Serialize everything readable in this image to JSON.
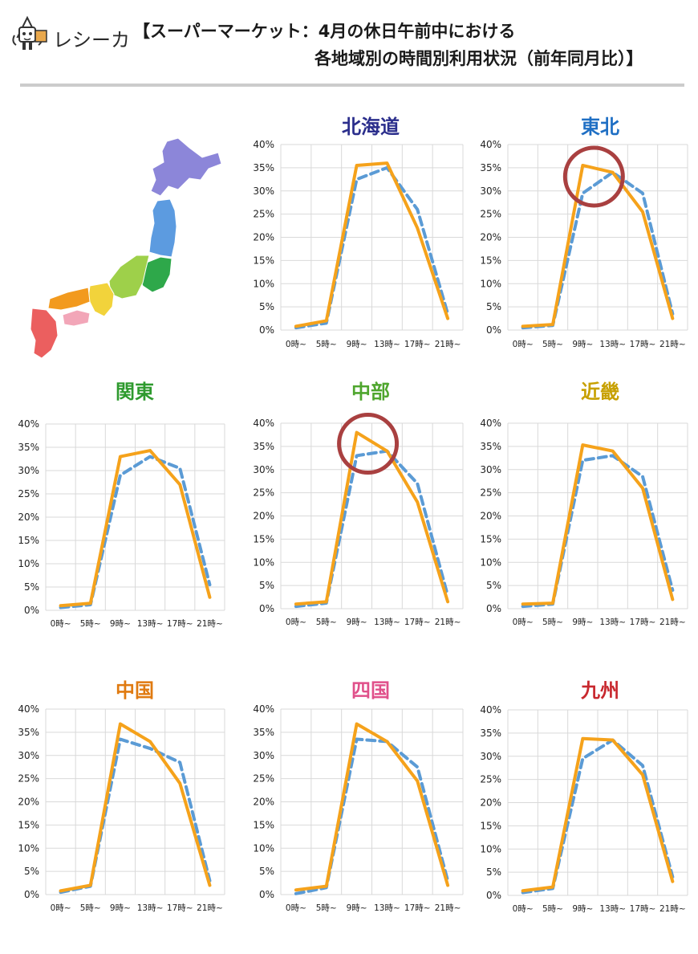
{
  "brand": {
    "logo_text": "レシーカ"
  },
  "header": {
    "title_line1": "【スーパーマーケット：4月の休日午前中における",
    "title_line2": "各地域別の時間別利用状況（前年同月比）】"
  },
  "colors": {
    "current_line": "#F5A21B",
    "previous_line": "#5B9BD5",
    "highlight_circle": "#A94040",
    "divider": "#cccccc",
    "map": {
      "hokkaido": "#8C86D9",
      "tohoku": "#5C9BE0",
      "kanto": "#2EA84A",
      "chubu": "#9ED04A",
      "kinki": "#F2D33B",
      "chugoku": "#F29A1E",
      "shikoku": "#F2A6B8",
      "kyushu": "#EB5F5F"
    }
  },
  "axis": {
    "y_ticks": [
      "0%",
      "5%",
      "10%",
      "15%",
      "20%",
      "25%",
      "30%",
      "35%",
      "40%"
    ],
    "x_ticks": [
      "0時~",
      "5時~",
      "9時~",
      "13時~",
      "17時~",
      "21時~"
    ]
  },
  "chart_data": [
    {
      "type": "line",
      "title": "北海道",
      "title_color": "#2B2E8C",
      "categories": [
        "0時~",
        "5時~",
        "9時~",
        "13時~",
        "17時~",
        "21時~"
      ],
      "ylim": [
        0,
        40
      ],
      "series": [
        {
          "style": "solid",
          "values": [
            0.8,
            2.0,
            35.5,
            36.0,
            22.0,
            2.5
          ]
        },
        {
          "style": "dashed",
          "values": [
            0.5,
            1.5,
            32.5,
            35.0,
            26.0,
            3.5
          ]
        }
      ],
      "highlight_index": null
    },
    {
      "type": "line",
      "title": "東北",
      "title_color": "#1F6FC4",
      "categories": [
        "0時~",
        "5時~",
        "9時~",
        "13時~",
        "17時~",
        "21時~"
      ],
      "ylim": [
        0,
        40
      ],
      "series": [
        {
          "style": "solid",
          "values": [
            0.8,
            1.2,
            35.5,
            34.0,
            25.5,
            2.5
          ]
        },
        {
          "style": "dashed",
          "values": [
            0.5,
            1.0,
            29.5,
            34.0,
            29.5,
            3.5
          ]
        }
      ],
      "highlight_index": 2
    },
    {
      "type": "line",
      "title": "関東",
      "title_color": "#2E9A2E",
      "categories": [
        "0時~",
        "5時~",
        "9時~",
        "13時~",
        "17時~",
        "21時~"
      ],
      "ylim": [
        0,
        40
      ],
      "series": [
        {
          "style": "solid",
          "values": [
            1.0,
            1.5,
            33.0,
            34.3,
            27.0,
            2.8
          ]
        },
        {
          "style": "dashed",
          "values": [
            0.6,
            1.2,
            29.0,
            33.0,
            30.5,
            5.5
          ]
        }
      ],
      "highlight_index": null
    },
    {
      "type": "line",
      "title": "中部",
      "title_color": "#4FA62E",
      "categories": [
        "0時~",
        "5時~",
        "9時~",
        "13時~",
        "17時~",
        "21時~"
      ],
      "ylim": [
        0,
        40
      ],
      "series": [
        {
          "style": "solid",
          "values": [
            1.0,
            1.5,
            38.0,
            34.0,
            23.0,
            1.5
          ]
        },
        {
          "style": "dashed",
          "values": [
            0.5,
            1.2,
            33.0,
            34.0,
            27.0,
            2.8
          ]
        }
      ],
      "highlight_index": 2
    },
    {
      "type": "line",
      "title": "近畿",
      "title_color": "#C7A000",
      "categories": [
        "0時~",
        "5時~",
        "9時~",
        "13時~",
        "17時~",
        "21時~"
      ],
      "ylim": [
        0,
        40
      ],
      "series": [
        {
          "style": "solid",
          "values": [
            1.0,
            1.2,
            35.3,
            34.0,
            26.0,
            2.0
          ]
        },
        {
          "style": "dashed",
          "values": [
            0.5,
            1.0,
            32.0,
            33.0,
            28.5,
            4.0
          ]
        }
      ],
      "highlight_index": null
    },
    {
      "type": "line",
      "title": "中国",
      "title_color": "#E07A10",
      "categories": [
        "0時~",
        "5時~",
        "9時~",
        "13時~",
        "17時~",
        "21時~"
      ],
      "ylim": [
        0,
        40
      ],
      "series": [
        {
          "style": "solid",
          "values": [
            0.8,
            2.0,
            36.8,
            33.0,
            24.0,
            2.0
          ]
        },
        {
          "style": "dashed",
          "values": [
            0.5,
            1.8,
            33.5,
            31.5,
            28.5,
            3.0
          ]
        }
      ],
      "highlight_index": null
    },
    {
      "type": "line",
      "title": "四国",
      "title_color": "#E0508A",
      "categories": [
        "0時~",
        "5時~",
        "9時~",
        "13時~",
        "17時~",
        "21時~"
      ],
      "ylim": [
        0,
        40
      ],
      "series": [
        {
          "style": "solid",
          "values": [
            1.0,
            1.8,
            36.8,
            33.0,
            24.5,
            2.0
          ]
        },
        {
          "style": "dashed",
          "values": [
            0.2,
            1.5,
            33.5,
            33.0,
            27.5,
            3.0
          ]
        }
      ],
      "highlight_index": null
    },
    {
      "type": "line",
      "title": "九州",
      "title_color": "#C8282E",
      "categories": [
        "0時~",
        "5時~",
        "9時~",
        "13時~",
        "17時~",
        "21時~"
      ],
      "ylim": [
        0,
        40
      ],
      "series": [
        {
          "style": "solid",
          "values": [
            1.0,
            1.8,
            33.8,
            33.5,
            26.0,
            3.0
          ]
        },
        {
          "style": "dashed",
          "values": [
            0.6,
            1.5,
            29.5,
            33.5,
            28.0,
            4.0
          ]
        }
      ],
      "highlight_index": null
    }
  ]
}
